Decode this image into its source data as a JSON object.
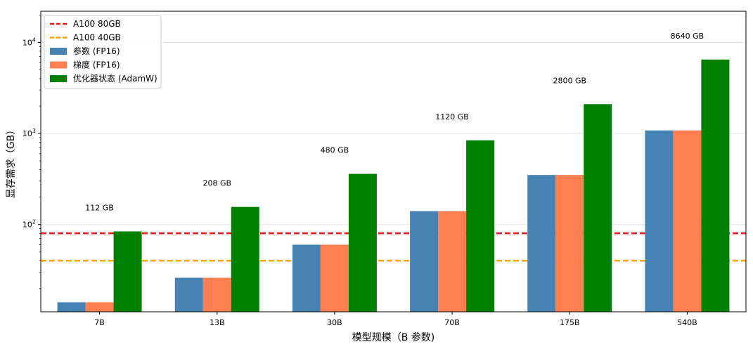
{
  "chart_data": {
    "type": "bar",
    "title": "",
    "xlabel": "模型规模（B 参数)",
    "ylabel": "显存需求（GB）",
    "yscale": "log",
    "ylim": [
      11,
      22000
    ],
    "yticks": [
      {
        "value": 100,
        "base": "10",
        "exp": "2"
      },
      {
        "value": 1000,
        "base": "10",
        "exp": "3"
      },
      {
        "value": 10000,
        "base": "10",
        "exp": "4"
      }
    ],
    "grid": "horizontal",
    "legend_position": "top-left",
    "categories": [
      "7B",
      "13B",
      "30B",
      "70B",
      "175B",
      "540B"
    ],
    "series": [
      {
        "name": "参数 (FP16)",
        "color": "#4682b4",
        "values": [
          14,
          26,
          60,
          140,
          350,
          1080
        ]
      },
      {
        "name": "梯度 (FP16)",
        "color": "#ff7f50",
        "values": [
          14,
          26,
          60,
          140,
          350,
          1080
        ]
      },
      {
        "name": "优化器状态 (AdamW)",
        "color": "#008000",
        "values": [
          84,
          156,
          360,
          840,
          2100,
          6480
        ]
      }
    ],
    "reference_lines": [
      {
        "name": "A100 80GB",
        "value": 80,
        "color": "#e31a1c",
        "style": "dashed"
      },
      {
        "name": "A100 40GB",
        "value": 40,
        "color": "#ffa500",
        "style": "dashed"
      }
    ],
    "totals": [
      "112 GB",
      "208 GB",
      "480 GB",
      "1120 GB",
      "2800 GB",
      "8640 GB"
    ]
  }
}
